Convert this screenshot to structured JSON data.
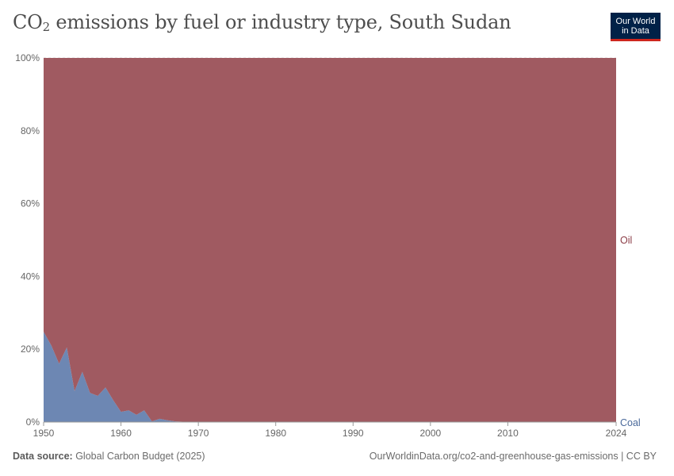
{
  "title_main": "CO",
  "title_sub": "2",
  "title_rest": " emissions by fuel or industry type, South Sudan",
  "logo": {
    "line1": "Our World",
    "line2": "in Data"
  },
  "footer": {
    "source_label": "Data source:",
    "source_text": " Global Carbon Budget (2025)",
    "url_text": "OurWorldinData.org/co2-and-greenhouse-gas-emissions | CC BY"
  },
  "chart_data": {
    "type": "area",
    "stacked": true,
    "normalized": true,
    "x_tick_labels": [
      "1950",
      "1960",
      "1970",
      "1980",
      "1990",
      "2000",
      "2010",
      "2024"
    ],
    "x_ticks": [
      1950,
      1960,
      1970,
      1980,
      1990,
      2000,
      2010,
      2024
    ],
    "y_tick_labels": [
      "0%",
      "20%",
      "40%",
      "60%",
      "80%",
      "100%"
    ],
    "y_ticks": [
      0,
      20,
      40,
      60,
      80,
      100
    ],
    "xlim": [
      1950,
      2024
    ],
    "ylim": [
      0,
      100
    ],
    "grid": "horizontal dashed",
    "x": [
      1950,
      1951,
      1952,
      1953,
      1954,
      1955,
      1956,
      1957,
      1958,
      1959,
      1960,
      1961,
      1962,
      1963,
      1964,
      1965,
      1966,
      1967,
      1968,
      1969,
      1970,
      1971,
      1972,
      1973,
      1974,
      1975,
      2024
    ],
    "series": [
      {
        "name": "Coal",
        "color": "#6d87b3",
        "values": [
          24.8,
          21,
          16,
          20.5,
          8.5,
          13.8,
          8,
          7.2,
          9.5,
          6,
          2.8,
          3.2,
          2,
          3.2,
          0.2,
          0.9,
          0.5,
          0.2,
          0.1,
          0.1,
          0.05,
          0.05,
          0.02,
          0,
          0,
          0,
          0
        ]
      },
      {
        "name": "Oil",
        "color": "#a05a61",
        "values": [
          75.2,
          79,
          84,
          79.5,
          91.5,
          86.2,
          92,
          92.8,
          90.5,
          94,
          97.2,
          96.8,
          98,
          96.8,
          99.8,
          99.1,
          99.5,
          99.8,
          99.9,
          99.9,
          99.95,
          99.95,
          99.98,
          100,
          100,
          100,
          100
        ]
      }
    ]
  }
}
